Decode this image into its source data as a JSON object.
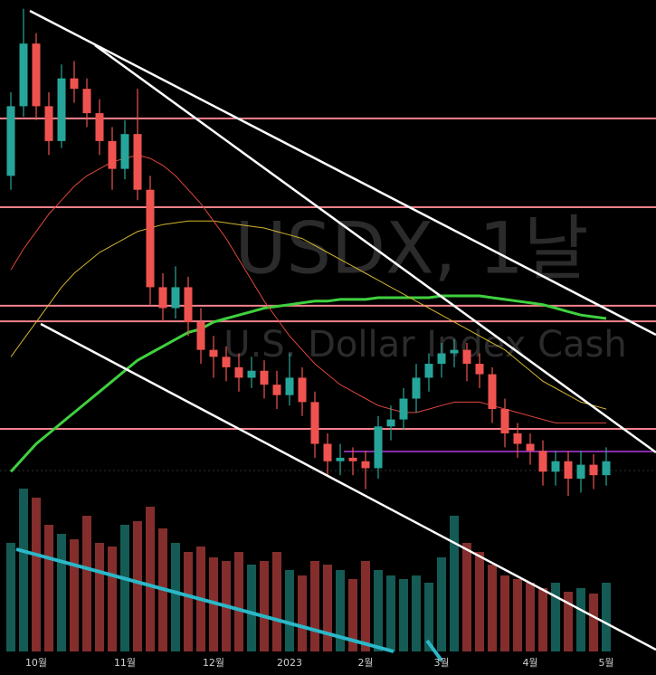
{
  "chart_data": {
    "type": "candlestick",
    "watermark": "USDX, 1날",
    "watermark_sub": "U.S. Dollar Index Cash",
    "categories": [
      null,
      null,
      "10월",
      null,
      null,
      null,
      null,
      null,
      null,
      "11월",
      null,
      null,
      null,
      null,
      null,
      null,
      "12월",
      null,
      null,
      null,
      null,
      null,
      "2023",
      null,
      null,
      null,
      null,
      null,
      "2월",
      null,
      null,
      null,
      null,
      null,
      "3월",
      null,
      null,
      null,
      null,
      null,
      null,
      "4월",
      null,
      null,
      null,
      null,
      null,
      "5월"
    ],
    "open": [
      110.0,
      112.0,
      113.8,
      112.0,
      111.0,
      112.8,
      112.5,
      111.8,
      111.0,
      110.2,
      111.2,
      109.6,
      106.8,
      106.2,
      106.8,
      105.8,
      105.0,
      104.8,
      104.5,
      104.2,
      104.4,
      104.0,
      103.7,
      104.2,
      103.5,
      102.3,
      101.8,
      101.9,
      101.8,
      101.6,
      102.8,
      103.0,
      103.6,
      104.2,
      104.6,
      104.9,
      105.0,
      104.6,
      104.3,
      103.3,
      102.6,
      102.3,
      102.1,
      101.5,
      101.8,
      101.3,
      101.7,
      101.4
    ],
    "high": [
      112.4,
      114.8,
      114.1,
      112.4,
      113.2,
      113.3,
      112.8,
      112.2,
      111.4,
      111.6,
      112.5,
      110.0,
      107.2,
      107.4,
      107.1,
      106.2,
      105.4,
      105.1,
      104.9,
      104.8,
      104.7,
      104.4,
      104.9,
      104.5,
      103.8,
      102.6,
      102.3,
      102.2,
      102.1,
      103.1,
      103.4,
      103.9,
      104.6,
      104.9,
      105.2,
      105.3,
      105.2,
      104.9,
      104.5,
      103.6,
      102.9,
      102.6,
      102.4,
      102.1,
      102.1,
      102.1,
      102.0,
      102.2
    ],
    "low": [
      109.6,
      111.7,
      111.6,
      110.6,
      110.8,
      112.1,
      111.4,
      110.6,
      109.6,
      109.9,
      109.3,
      106.3,
      105.8,
      105.9,
      105.4,
      104.6,
      104.2,
      104.1,
      103.8,
      103.9,
      103.6,
      103.3,
      103.4,
      103.1,
      101.9,
      101.4,
      101.4,
      101.4,
      101.0,
      101.3,
      102.4,
      102.7,
      103.2,
      103.8,
      104.2,
      104.5,
      104.1,
      103.9,
      102.9,
      102.2,
      101.9,
      101.7,
      101.1,
      101.1,
      100.8,
      100.9,
      101.0,
      101.1
    ],
    "close": [
      112.0,
      113.8,
      112.0,
      111.0,
      112.8,
      112.5,
      111.8,
      111.0,
      110.2,
      111.2,
      109.6,
      106.8,
      106.2,
      106.8,
      105.8,
      105.0,
      104.8,
      104.5,
      104.2,
      104.4,
      104.0,
      103.7,
      104.2,
      103.5,
      102.3,
      101.8,
      101.9,
      101.8,
      101.6,
      102.8,
      103.0,
      103.6,
      104.2,
      104.6,
      104.9,
      105.0,
      104.6,
      104.3,
      103.3,
      102.6,
      102.3,
      102.1,
      101.5,
      101.8,
      101.3,
      101.7,
      101.4,
      101.8
    ],
    "volume": [
      60,
      90,
      85,
      70,
      65,
      62,
      75,
      60,
      58,
      70,
      72,
      80,
      68,
      60,
      55,
      58,
      52,
      50,
      55,
      48,
      50,
      55,
      45,
      42,
      50,
      48,
      45,
      40,
      50,
      45,
      42,
      40,
      42,
      38,
      52,
      75,
      60,
      55,
      48,
      42,
      40,
      38,
      35,
      38,
      33,
      35,
      32,
      38
    ],
    "ylim": [
      100,
      115
    ],
    "volume_lim": [
      0,
      100
    ],
    "up_color": "#26a69a",
    "down_color": "#ef5350",
    "levels": [
      111.65,
      109.1,
      106.27,
      105.82,
      102.73
    ],
    "level_color": "#f4828c",
    "highlight_level": 102.08,
    "highlight_color": "#b03adf",
    "series": [
      {
        "color": "#3fd13f",
        "width": 3,
        "values": [
          101.5,
          101.9,
          102.3,
          102.6,
          102.9,
          103.2,
          103.5,
          103.8,
          104.1,
          104.4,
          104.7,
          104.9,
          105.1,
          105.3,
          105.5,
          105.6,
          105.8,
          105.9,
          106.0,
          106.1,
          106.2,
          106.25,
          106.3,
          106.35,
          106.4,
          106.4,
          106.45,
          106.45,
          106.45,
          106.5,
          106.5,
          106.5,
          106.5,
          106.5,
          106.55,
          106.55,
          106.55,
          106.55,
          106.5,
          106.45,
          106.4,
          106.35,
          106.3,
          106.2,
          106.1,
          106.0,
          105.95,
          105.9
        ]
      },
      {
        "color": "#d4b42c",
        "width": 1,
        "values": [
          104.8,
          105.3,
          105.8,
          106.3,
          106.8,
          107.2,
          107.5,
          107.8,
          108.0,
          108.2,
          108.4,
          108.5,
          108.6,
          108.65,
          108.7,
          108.7,
          108.7,
          108.65,
          108.6,
          108.55,
          108.5,
          108.4,
          108.3,
          108.2,
          108.0,
          107.8,
          107.6,
          107.4,
          107.2,
          107.0,
          106.8,
          106.6,
          106.4,
          106.2,
          106.0,
          105.8,
          105.6,
          105.4,
          105.2,
          105.0,
          104.7,
          104.4,
          104.1,
          103.9,
          103.7,
          103.5,
          103.4,
          103.3
        ]
      },
      {
        "color": "#e0463c",
        "width": 1,
        "values": [
          107.3,
          107.9,
          108.4,
          108.9,
          109.3,
          109.7,
          110.0,
          110.2,
          110.4,
          110.5,
          110.6,
          110.5,
          110.3,
          110.0,
          109.6,
          109.2,
          108.7,
          108.2,
          107.6,
          107.0,
          106.4,
          105.9,
          105.4,
          105.0,
          104.6,
          104.3,
          104.0,
          103.8,
          103.6,
          103.4,
          103.3,
          103.2,
          103.2,
          103.3,
          103.4,
          103.5,
          103.5,
          103.5,
          103.4,
          103.3,
          103.2,
          103.1,
          103.0,
          102.9,
          102.9,
          102.9,
          102.9,
          102.9
        ]
      }
    ]
  }
}
